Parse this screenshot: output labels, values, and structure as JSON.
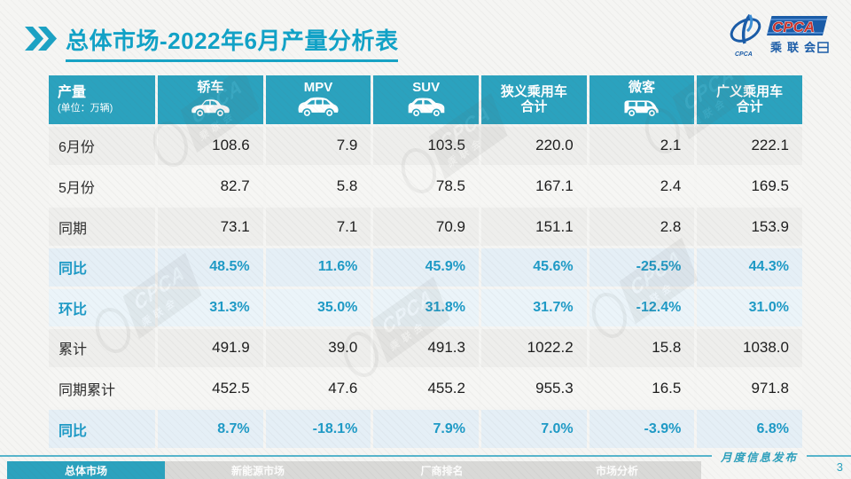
{
  "slide": {
    "title": "总体市场-2022年6月产量分析表",
    "publication_label": "月度信息发布",
    "page_number": "3"
  },
  "logo": {
    "name": "CPCA",
    "subtitle": "乘联会",
    "emblem_caption": "CPCA"
  },
  "watermark_text": {
    "line1": "CPCA",
    "line2": "乘联会"
  },
  "table": {
    "corner": {
      "title": "产量",
      "unit": "(单位：万辆)"
    },
    "columns": [
      {
        "label": "轿车",
        "sublabel": "",
        "icon": "sedan-icon"
      },
      {
        "label": "MPV",
        "sublabel": "",
        "icon": "mpv-icon"
      },
      {
        "label": "SUV",
        "sublabel": "",
        "icon": "suv-icon"
      },
      {
        "label": "狭义乘用车",
        "sublabel": "合计",
        "icon": ""
      },
      {
        "label": "微客",
        "sublabel": "",
        "icon": "microvan-icon"
      },
      {
        "label": "广义乘用车",
        "sublabel": "合计",
        "icon": ""
      }
    ],
    "rows": [
      {
        "label": "6月份",
        "type": "value",
        "values": [
          "108.6",
          "7.9",
          "103.5",
          "220.0",
          "2.1",
          "222.1"
        ]
      },
      {
        "label": "5月份",
        "type": "value",
        "values": [
          "82.7",
          "5.8",
          "78.5",
          "167.1",
          "2.4",
          "169.5"
        ]
      },
      {
        "label": "同期",
        "type": "value",
        "values": [
          "73.1",
          "7.1",
          "70.9",
          "151.1",
          "2.8",
          "153.9"
        ]
      },
      {
        "label": "同比",
        "type": "percent",
        "values": [
          "48.5%",
          "11.6%",
          "45.9%",
          "45.6%",
          "-25.5%",
          "44.3%"
        ]
      },
      {
        "label": "环比",
        "type": "percent",
        "values": [
          "31.3%",
          "35.0%",
          "31.8%",
          "31.7%",
          "-12.4%",
          "31.0%"
        ]
      },
      {
        "label": "累计",
        "type": "value",
        "values": [
          "491.9",
          "39.0",
          "491.3",
          "1022.2",
          "15.8",
          "1038.0"
        ]
      },
      {
        "label": "同期累计",
        "type": "value",
        "values": [
          "452.5",
          "47.6",
          "455.2",
          "955.3",
          "16.5",
          "971.8"
        ]
      },
      {
        "label": "同比",
        "type": "percent",
        "values": [
          "8.7%",
          "-18.1%",
          "7.9%",
          "7.0%",
          "-3.9%",
          "6.8%"
        ]
      }
    ]
  },
  "footer_tabs": [
    {
      "label": "总体市场",
      "active": true
    },
    {
      "label": "新能源市场",
      "active": false
    },
    {
      "label": "厂商排名",
      "active": false
    },
    {
      "label": "市场分析",
      "active": false
    }
  ],
  "colors": {
    "accent_teal": "#2BA2BE",
    "title_teal": "#11A2C7",
    "percent_text": "#1E9AC6",
    "footer_line": "#57B5CC",
    "logo_blue": "#1A5CA8",
    "logo_red": "#C8342E"
  }
}
